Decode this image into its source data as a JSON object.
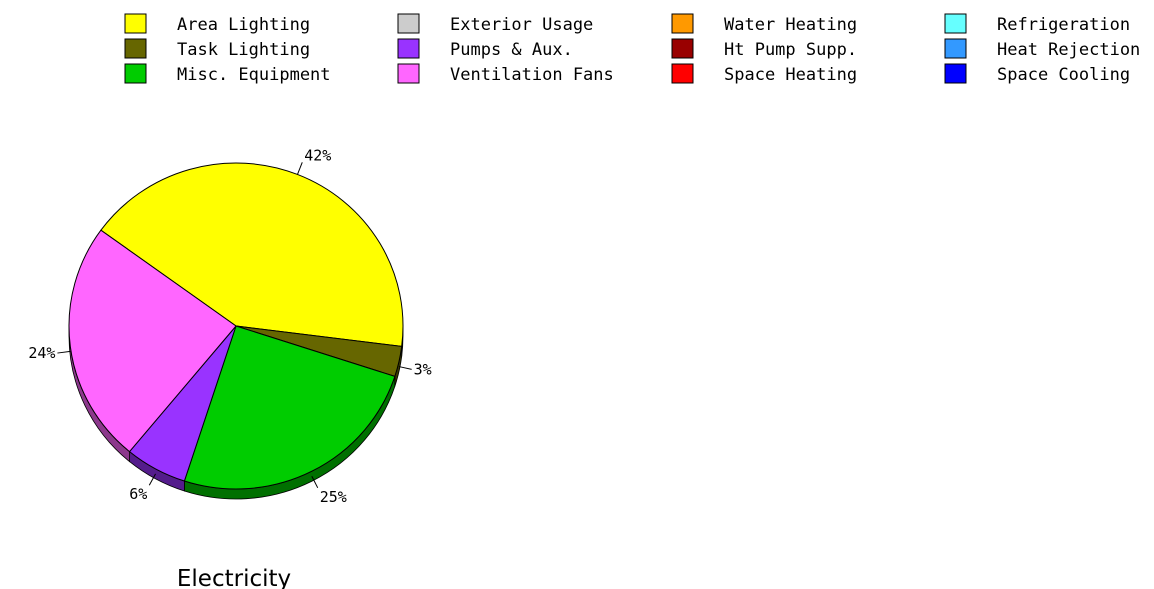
{
  "chart_data": {
    "type": "pie",
    "title": "Electricity",
    "legend": [
      {
        "label": "Area Lighting",
        "color": "#ffff00"
      },
      {
        "label": "Task Lighting",
        "color": "#666600"
      },
      {
        "label": "Misc. Equipment",
        "color": "#00cc00"
      },
      {
        "label": "Exterior Usage",
        "color": "#cccccc"
      },
      {
        "label": "Pumps & Aux.",
        "color": "#9933ff"
      },
      {
        "label": "Ventilation Fans",
        "color": "#ff66ff"
      },
      {
        "label": "Water Heating",
        "color": "#ff9900"
      },
      {
        "label": "Ht Pump Supp.",
        "color": "#990000"
      },
      {
        "label": "Space Heating",
        "color": "#ff0000"
      },
      {
        "label": "Refrigeration",
        "color": "#66ffff"
      },
      {
        "label": "Heat Rejection",
        "color": "#3399ff"
      },
      {
        "label": "Space Cooling",
        "color": "#0000ff"
      }
    ],
    "slices": [
      {
        "category": "Area Lighting",
        "value": 42,
        "label": "42%",
        "color": "#ffff00"
      },
      {
        "category": "Task Lighting",
        "value": 3,
        "label": "3%",
        "color": "#666600"
      },
      {
        "category": "Misc. Equipment",
        "value": 25,
        "label": "25%",
        "color": "#00cc00"
      },
      {
        "category": "Pumps & Aux.",
        "value": 6,
        "label": "6%",
        "color": "#9933ff"
      },
      {
        "category": "Ventilation Fans",
        "value": 24,
        "label": "24%",
        "color": "#ff66ff"
      }
    ],
    "legend_position": "top"
  }
}
